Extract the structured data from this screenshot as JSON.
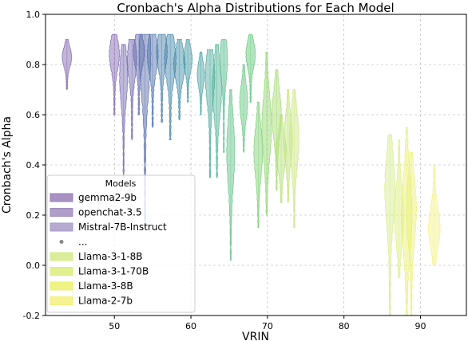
{
  "chart_data": {
    "type": "violin",
    "title": "Cronbach's Alpha Distributions for Each Model",
    "xlabel": "VRIN",
    "ylabel": "Cronbach's Alpha",
    "xlim": [
      41,
      96
    ],
    "ylim": [
      -0.2,
      1.0
    ],
    "xticks": [
      50,
      60,
      70,
      80,
      90
    ],
    "yticks": [
      -0.2,
      0.0,
      0.2,
      0.4,
      0.6,
      0.8,
      1.0
    ],
    "grid": true,
    "legend": {
      "title": "Models",
      "placement": "lower-left",
      "entries": [
        {
          "label": "gemma2-9b",
          "color": "#9a7fb8",
          "marker": "patch"
        },
        {
          "label": "openchat-3.5",
          "color": "#a18cc0",
          "marker": "patch"
        },
        {
          "label": "Mistral-7B-Instruct",
          "color": "#a99ac8",
          "marker": "patch"
        },
        {
          "label": "...",
          "color": "#888888",
          "marker": "dot"
        },
        {
          "label": "Llama-3-1-8B",
          "color": "#d5ea88",
          "marker": "patch"
        },
        {
          "label": "Llama-3-1-70B",
          "color": "#dded7c",
          "marker": "patch"
        },
        {
          "label": "Llama-3-8B",
          "color": "#ecf070",
          "marker": "patch"
        },
        {
          "label": "Llama-2-7b",
          "color": "#f4f080",
          "marker": "patch"
        }
      ]
    },
    "violins": [
      {
        "x": 43.8,
        "min": 0.7,
        "max": 0.9,
        "mode": 0.83,
        "w": 1.3,
        "color": "#7a5aa8"
      },
      {
        "x": 50.0,
        "min": 0.6,
        "max": 0.92,
        "mode": 0.84,
        "w": 1.4,
        "color": "#7d5fae"
      },
      {
        "x": 51.2,
        "min": 0.35,
        "max": 0.88,
        "mode": 0.75,
        "w": 1.1,
        "color": "#6f63ad"
      },
      {
        "x": 52.3,
        "min": 0.5,
        "max": 0.9,
        "mode": 0.82,
        "w": 1.3,
        "color": "#655fa9"
      },
      {
        "x": 53.2,
        "min": 0.6,
        "max": 0.92,
        "mode": 0.85,
        "w": 1.5,
        "color": "#5c63a8"
      },
      {
        "x": 54.0,
        "min": 0.15,
        "max": 0.92,
        "mode": 0.84,
        "w": 1.6,
        "color": "#4f66a5"
      },
      {
        "x": 55.0,
        "min": 0.55,
        "max": 0.92,
        "mode": 0.84,
        "w": 1.5,
        "color": "#486da6"
      },
      {
        "x": 56.2,
        "min": 0.57,
        "max": 0.92,
        "mode": 0.85,
        "w": 1.5,
        "color": "#3f75a6"
      },
      {
        "x": 57.3,
        "min": 0.5,
        "max": 0.92,
        "mode": 0.82,
        "w": 1.6,
        "color": "#3a7fa5"
      },
      {
        "x": 58.5,
        "min": 0.58,
        "max": 0.9,
        "mode": 0.8,
        "w": 1.6,
        "color": "#3588a3"
      },
      {
        "x": 59.6,
        "min": 0.65,
        "max": 0.9,
        "mode": 0.82,
        "w": 1.2,
        "color": "#3a94a0"
      },
      {
        "x": 61.3,
        "min": 0.6,
        "max": 0.85,
        "mode": 0.76,
        "w": 1.0,
        "color": "#3f9e9d"
      },
      {
        "x": 62.5,
        "min": 0.35,
        "max": 0.86,
        "mode": 0.75,
        "w": 1.3,
        "color": "#45a89a"
      },
      {
        "x": 63.4,
        "min": 0.35,
        "max": 0.88,
        "mode": 0.7,
        "w": 1.3,
        "color": "#4bb192"
      },
      {
        "x": 64.3,
        "min": 0.45,
        "max": 0.9,
        "mode": 0.82,
        "w": 1.0,
        "color": "#52b88a"
      },
      {
        "x": 65.2,
        "min": 0.02,
        "max": 0.7,
        "mode": 0.45,
        "w": 1.1,
        "color": "#5bbf82"
      },
      {
        "x": 66.9,
        "min": 0.45,
        "max": 0.8,
        "mode": 0.65,
        "w": 1.1,
        "color": "#60c57c"
      },
      {
        "x": 67.8,
        "min": 0.65,
        "max": 0.92,
        "mode": 0.84,
        "w": 1.3,
        "color": "#58c471"
      },
      {
        "x": 68.8,
        "min": 0.15,
        "max": 0.65,
        "mode": 0.45,
        "w": 1.2,
        "color": "#78ce6d"
      },
      {
        "x": 69.9,
        "min": 0.2,
        "max": 0.85,
        "mode": 0.55,
        "w": 1.3,
        "color": "#8dd46a"
      },
      {
        "x": 71.2,
        "min": 0.3,
        "max": 0.78,
        "mode": 0.6,
        "w": 1.3,
        "color": "#a2da6c"
      },
      {
        "x": 71.8,
        "min": 0.25,
        "max": 0.6,
        "mode": 0.45,
        "w": 1.4,
        "color": "#b2de70"
      },
      {
        "x": 72.7,
        "min": 0.25,
        "max": 0.7,
        "mode": 0.5,
        "w": 1.2,
        "color": "#bfe276"
      },
      {
        "x": 73.5,
        "min": 0.15,
        "max": 0.7,
        "mode": 0.5,
        "w": 1.3,
        "color": "#c9e57c"
      },
      {
        "x": 86.0,
        "min": -0.2,
        "max": 0.52,
        "mode": 0.3,
        "w": 1.4,
        "color": "#d5ea88"
      },
      {
        "x": 87.2,
        "min": -0.05,
        "max": 0.5,
        "mode": 0.2,
        "w": 1.3,
        "color": "#dded7c"
      },
      {
        "x": 88.2,
        "min": -0.2,
        "max": 0.55,
        "mode": 0.2,
        "w": 1.5,
        "color": "#e6ef70"
      },
      {
        "x": 88.8,
        "min": -0.2,
        "max": 0.45,
        "mode": 0.22,
        "w": 1.4,
        "color": "#ecf070"
      },
      {
        "x": 91.8,
        "min": 0.0,
        "max": 0.4,
        "mode": 0.15,
        "w": 1.6,
        "color": "#f4f080"
      }
    ]
  }
}
